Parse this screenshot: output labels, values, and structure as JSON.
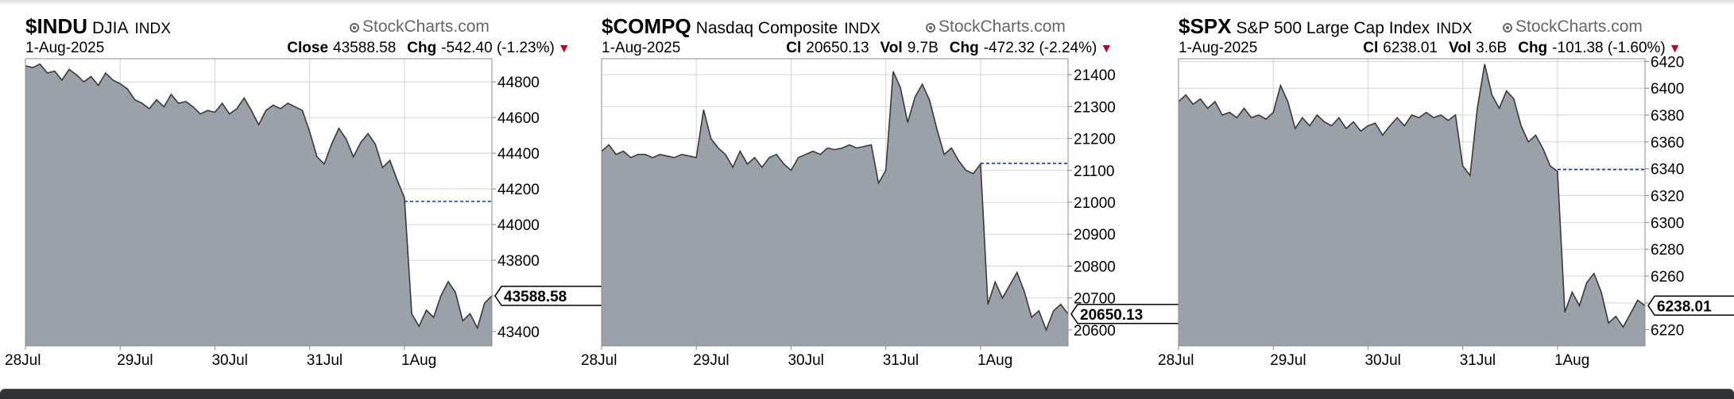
{
  "chart_data": [
    {
      "type": "area",
      "symbol": "$INDU",
      "name": "DJIA",
      "exchange": "INDX",
      "watermark": "StockCharts.com",
      "date": "1-Aug-2025",
      "close_label": "Close",
      "close": "43588.58",
      "chg_label": "Chg",
      "chg": "-542.40 (-1.23%)",
      "last_value_tag": "43588.58",
      "prev_close": 44130,
      "ylim": [
        43320,
        44930
      ],
      "yticks": [
        43400,
        43600,
        43800,
        44000,
        44200,
        44400,
        44600,
        44800
      ],
      "ytick_labels": [
        "43400",
        "",
        "43800",
        "44000",
        "44200",
        "44400",
        "44600",
        "44800"
      ],
      "day_labels": [
        "28Jul",
        "29Jul",
        "30Jul",
        "31Jul",
        "1Aug"
      ],
      "points_per_day": 13,
      "values": [
        44890,
        44880,
        44900,
        44850,
        44860,
        44810,
        44870,
        44840,
        44800,
        44830,
        44780,
        44850,
        44810,
        44790,
        44760,
        44700,
        44680,
        44650,
        44700,
        44660,
        44730,
        44680,
        44690,
        44660,
        44620,
        44640,
        44630,
        44680,
        44620,
        44650,
        44710,
        44640,
        44560,
        44640,
        44670,
        44650,
        44680,
        44660,
        44640,
        44520,
        44380,
        44340,
        44450,
        44540,
        44480,
        44380,
        44460,
        44510,
        44450,
        44320,
        44360,
        44250,
        44150,
        43500,
        43430,
        43520,
        43480,
        43600,
        43680,
        43620,
        43460,
        43500,
        43420,
        43560,
        43600
      ]
    },
    {
      "type": "area",
      "symbol": "$COMPQ",
      "name": "Nasdaq Composite",
      "exchange": "INDX",
      "watermark": "StockCharts.com",
      "date": "1-Aug-2025",
      "close_label": "Cl",
      "close": "20650.13",
      "vol_label": "Vol",
      "vol": "9.7B",
      "chg_label": "Chg",
      "chg": "-472.32 (-2.24%)",
      "last_value_tag": "20650.13",
      "prev_close": 21122,
      "ylim": [
        20550,
        21450
      ],
      "yticks": [
        20600,
        20700,
        20800,
        20900,
        21000,
        21100,
        21200,
        21300,
        21400
      ],
      "ytick_labels": [
        "20600",
        "20700",
        "20800",
        "20900",
        "21000",
        "21100",
        "21200",
        "21300",
        "21400"
      ],
      "day_labels": [
        "28Jul",
        "29Jul",
        "30Jul",
        "31Jul",
        "1Aug"
      ],
      "points_per_day": 13,
      "values": [
        21160,
        21180,
        21150,
        21160,
        21140,
        21150,
        21150,
        21140,
        21150,
        21145,
        21140,
        21150,
        21145,
        21140,
        21290,
        21200,
        21170,
        21150,
        21110,
        21160,
        21120,
        21140,
        21110,
        21140,
        21150,
        21120,
        21100,
        21140,
        21150,
        21160,
        21150,
        21170,
        21165,
        21170,
        21180,
        21170,
        21175,
        21180,
        21060,
        21100,
        21410,
        21360,
        21250,
        21330,
        21370,
        21320,
        21230,
        21150,
        21170,
        21130,
        21100,
        21090,
        21120,
        20680,
        20750,
        20700,
        20740,
        20780,
        20720,
        20640,
        20660,
        20600,
        20660,
        20680,
        20650
      ]
    },
    {
      "type": "area",
      "symbol": "$SPX",
      "name": "S&P 500 Large Cap Index",
      "exchange": "INDX",
      "watermark": "StockCharts.com",
      "date": "1-Aug-2025",
      "close_label": "Cl",
      "close": "6238.01",
      "vol_label": "Vol",
      "vol": "3.6B",
      "chg_label": "Chg",
      "chg": "-101.38 (-1.60%)",
      "last_value_tag": "6238.01",
      "prev_close": 6339.4,
      "ylim": [
        6208,
        6422
      ],
      "yticks": [
        6220,
        6240,
        6260,
        6280,
        6300,
        6320,
        6340,
        6360,
        6380,
        6400,
        6420
      ],
      "ytick_labels": [
        "6220",
        "",
        "6260",
        "6280",
        "6300",
        "6320",
        "6340",
        "6360",
        "6380",
        "6400",
        "6420"
      ],
      "day_labels": [
        "28Jul",
        "29Jul",
        "30Jul",
        "31Jul",
        "1Aug"
      ],
      "points_per_day": 13,
      "values": [
        6390,
        6395,
        6388,
        6392,
        6385,
        6390,
        6380,
        6382,
        6378,
        6385,
        6378,
        6380,
        6377,
        6382,
        6402,
        6390,
        6370,
        6378,
        6372,
        6380,
        6375,
        6372,
        6378,
        6370,
        6375,
        6368,
        6372,
        6374,
        6365,
        6372,
        6378,
        6372,
        6380,
        6378,
        6382,
        6378,
        6380,
        6376,
        6380,
        6342,
        6335,
        6385,
        6418,
        6395,
        6385,
        6398,
        6392,
        6372,
        6360,
        6365,
        6355,
        6342,
        6338,
        6233,
        6248,
        6238,
        6255,
        6262,
        6248,
        6225,
        6230,
        6222,
        6232,
        6242,
        6238
      ]
    }
  ]
}
